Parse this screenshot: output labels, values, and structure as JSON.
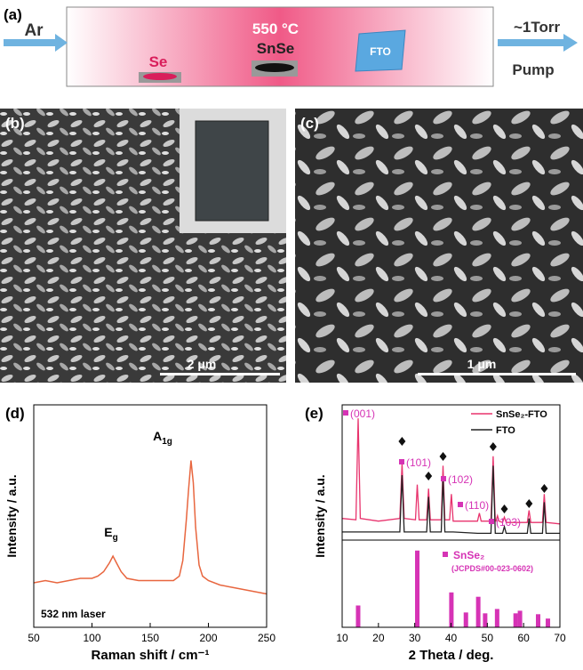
{
  "schematic": {
    "label": "(a)",
    "gas": "Ar",
    "temperature": "550 °C",
    "sources": [
      "Se",
      "SnSe"
    ],
    "substrate": "FTO",
    "pressure": "~1Torr",
    "pump": "Pump"
  },
  "micrographs": [
    {
      "label": "(b)",
      "scale_bar": "2 μm"
    },
    {
      "label": "(c)",
      "scale_bar": "1 μm"
    }
  ],
  "chart_data": [
    {
      "type": "line",
      "label": "(d)",
      "xlabel": "Raman shift / cm⁻¹",
      "ylabel": "Intensity / a.u.",
      "annotations": [
        {
          "text": "E",
          "subscript": "g"
        },
        {
          "text": "A",
          "subscript": "1g"
        }
      ],
      "note": "532 nm laser",
      "x": [
        50,
        60,
        70,
        80,
        90,
        100,
        105,
        110,
        115,
        118,
        121,
        125,
        130,
        140,
        150,
        160,
        170,
        175,
        178,
        181,
        183,
        185,
        187,
        189,
        192,
        195,
        200,
        210,
        220,
        230,
        240,
        250
      ],
      "series": [
        {
          "color": "#e8663f",
          "values": [
            20,
            21,
            20,
            21,
            22,
            22,
            23,
            25,
            29,
            32,
            29,
            25,
            22,
            21,
            21,
            21,
            21,
            23,
            30,
            48,
            62,
            75,
            65,
            45,
            28,
            23,
            21,
            19,
            18,
            17,
            16,
            15
          ]
        }
      ],
      "xlim": [
        50,
        250
      ],
      "xticks": [
        50,
        100,
        150,
        200,
        250
      ],
      "ylim": [
        0,
        100
      ]
    },
    {
      "type": "line",
      "label": "(e)",
      "xlabel": "2 Theta / deg.",
      "ylabel": "Intensity / a.u.",
      "legend": "upper right",
      "peak_labels": [
        "(001)",
        "(101)",
        "(102)",
        "(110)",
        "(103)"
      ],
      "x": [
        10,
        13.8,
        14.4,
        15,
        20,
        25.9,
        26.5,
        27.1,
        30.2,
        30.7,
        31.2,
        33.3,
        33.8,
        34.3,
        37.3,
        37.8,
        38.3,
        39.6,
        40.1,
        40.6,
        47.3,
        47.8,
        48.3,
        51,
        51.6,
        52.2,
        52.4,
        52.8,
        53.2,
        54.2,
        54.7,
        55.2,
        61,
        61.5,
        62,
        65.2,
        65.7,
        66.2,
        70
      ],
      "series": [
        {
          "name": "SnSe₂-FTO",
          "color": "#e8336d",
          "values": [
            16,
            15,
            90,
            16,
            14,
            16,
            57,
            16,
            15,
            41,
            15,
            15,
            38,
            15,
            15,
            55,
            15,
            15,
            34,
            14,
            14,
            20,
            14,
            14,
            62,
            14,
            14,
            18,
            14,
            13,
            17,
            13,
            13,
            22,
            13,
            13,
            34,
            13,
            12
          ]
        },
        {
          "name": "FTO",
          "color": "#222222",
          "values": [
            6,
            6,
            6,
            6,
            6,
            6,
            48,
            6,
            6,
            6,
            6,
            6,
            32,
            6,
            6,
            47,
            6,
            6,
            6,
            6,
            5,
            5,
            5,
            5,
            55,
            5,
            5,
            5,
            5,
            5,
            10,
            5,
            5,
            16,
            5,
            5,
            28,
            5,
            5
          ]
        }
      ],
      "reference": {
        "name": "SnSe₂",
        "source": "(JCPDS#00-023-0602)",
        "color": "#d633b5",
        "x": [
          14.4,
          30.7,
          40.1,
          44.1,
          47.5,
          49.4,
          52.7,
          57.8,
          59,
          64,
          66.7
        ],
        "values": [
          25,
          88,
          40,
          17,
          35,
          16,
          21,
          16,
          19,
          15,
          10
        ],
        "ylim": [
          0,
          100
        ]
      },
      "xlim": [
        10,
        70
      ],
      "xticks": [
        10,
        20,
        30,
        40,
        50,
        60,
        70
      ],
      "ylim": [
        0,
        100
      ]
    }
  ]
}
